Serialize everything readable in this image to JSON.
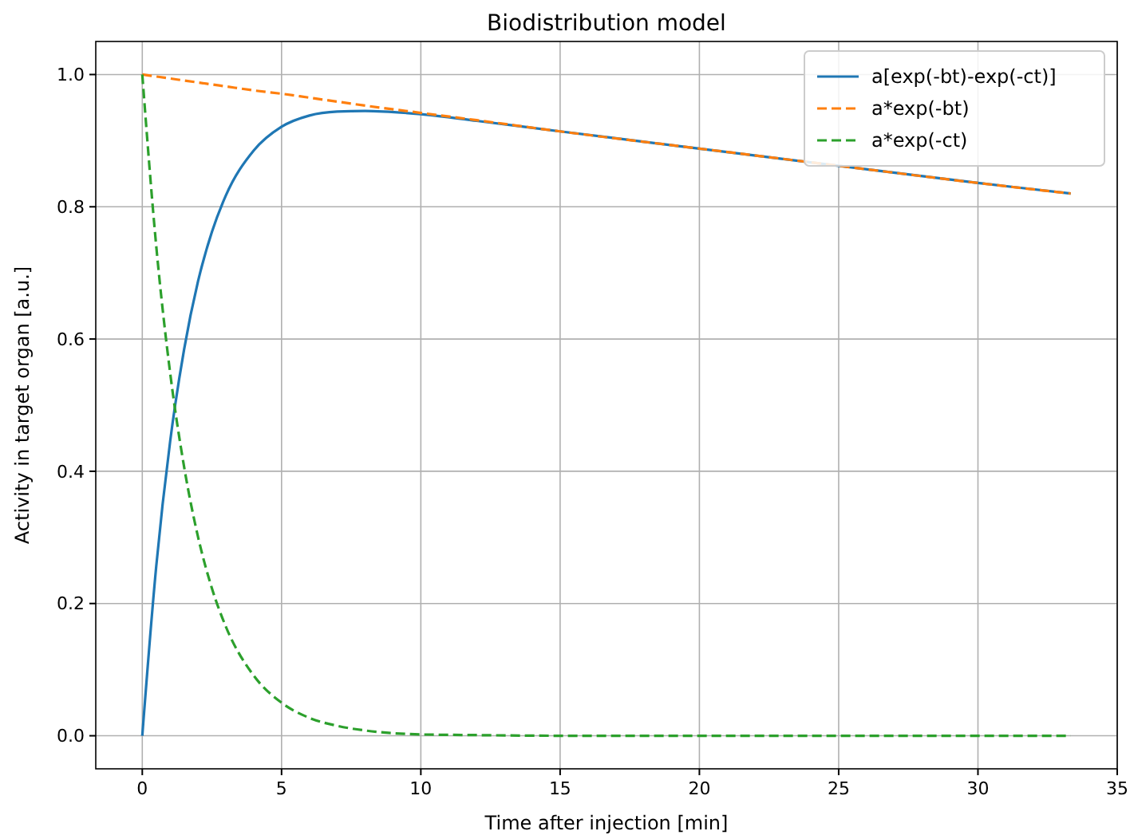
{
  "chart_data": {
    "type": "line",
    "title": "Biodistribution model",
    "xlabel": "Time after injection [min]",
    "ylabel": "Activity in target organ [a.u.]",
    "x": [
      0,
      0.5,
      1,
      1.5,
      2,
      2.5,
      3,
      4,
      5,
      6,
      7,
      8,
      10,
      12,
      15,
      20,
      25,
      30,
      33.33
    ],
    "series": [
      {
        "name": "a[exp(-bt)-exp(-ct)]",
        "color": "#1f77b4",
        "line_style": "solid",
        "values": [
          0,
          0.256,
          0.445,
          0.584,
          0.687,
          0.762,
          0.817,
          0.885,
          0.921,
          0.938,
          0.944,
          0.945,
          0.94,
          0.93,
          0.914,
          0.888,
          0.862,
          0.836,
          0.82
        ]
      },
      {
        "name": "a*exp(-bt)",
        "color": "#ff7f0e",
        "line_style": "dashed",
        "values": [
          1,
          0.997,
          0.994,
          0.991,
          0.988,
          0.985,
          0.982,
          0.976,
          0.971,
          0.965,
          0.959,
          0.953,
          0.942,
          0.931,
          0.914,
          0.888,
          0.862,
          0.836,
          0.82
        ]
      },
      {
        "name": "a*exp(-ct)",
        "color": "#2ca02c",
        "line_style": "dashed",
        "values": [
          1,
          0.741,
          0.549,
          0.407,
          0.301,
          0.223,
          0.165,
          0.091,
          0.05,
          0.027,
          0.015,
          0.008,
          0.002,
          0.001,
          0,
          0,
          0,
          0,
          0
        ]
      }
    ],
    "xlim": [
      -1.67,
      35
    ],
    "xticks": [
      0,
      5,
      10,
      15,
      20,
      25,
      30,
      35
    ],
    "ylim": [
      -0.05,
      1.05
    ],
    "yticks": [
      {
        "value": 0,
        "label": "0.0"
      },
      {
        "value": 0.2,
        "label": "0.2"
      },
      {
        "value": 0.4,
        "label": "0.4"
      },
      {
        "value": 0.6,
        "label": "0.6"
      },
      {
        "value": 0.8,
        "label": "0.8"
      },
      {
        "value": 1,
        "label": "1.0"
      }
    ],
    "grid": true,
    "legend": "top right"
  }
}
